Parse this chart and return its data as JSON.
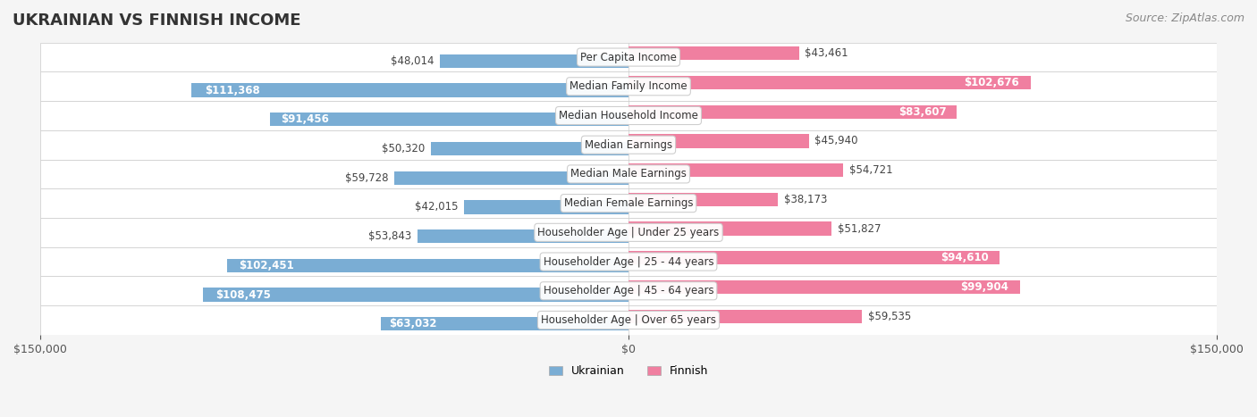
{
  "title": "UKRAINIAN VS FINNISH INCOME",
  "source": "Source: ZipAtlas.com",
  "categories": [
    "Per Capita Income",
    "Median Family Income",
    "Median Household Income",
    "Median Earnings",
    "Median Male Earnings",
    "Median Female Earnings",
    "Householder Age | Under 25 years",
    "Householder Age | 25 - 44 years",
    "Householder Age | 45 - 64 years",
    "Householder Age | Over 65 years"
  ],
  "ukrainian_values": [
    48014,
    111368,
    91456,
    50320,
    59728,
    42015,
    53843,
    102451,
    108475,
    63032
  ],
  "finnish_values": [
    43461,
    102676,
    83607,
    45940,
    54721,
    38173,
    51827,
    94610,
    99904,
    59535
  ],
  "ukrainian_labels": [
    "$48,014",
    "$111,368",
    "$91,456",
    "$50,320",
    "$59,728",
    "$42,015",
    "$53,843",
    "$102,451",
    "$108,475",
    "$63,032"
  ],
  "finnish_labels": [
    "$43,461",
    "$102,676",
    "$83,607",
    "$45,940",
    "$54,721",
    "$38,173",
    "$51,827",
    "$94,610",
    "$99,904",
    "$59,535"
  ],
  "ukrainian_color": "#7aadd4",
  "finnish_color": "#f07fa0",
  "ukrainian_color_dark": "#5a8fc4",
  "finnish_color_dark": "#e05080",
  "background_color": "#f5f5f5",
  "row_bg_color": "#ffffff",
  "row_alt_bg_color": "#f0f0f0",
  "axis_limit": 150000,
  "bar_height": 0.55,
  "label_inside_threshold": 60000,
  "title_fontsize": 13,
  "source_fontsize": 9,
  "tick_fontsize": 9,
  "label_fontsize": 8.5,
  "category_fontsize": 8.5
}
